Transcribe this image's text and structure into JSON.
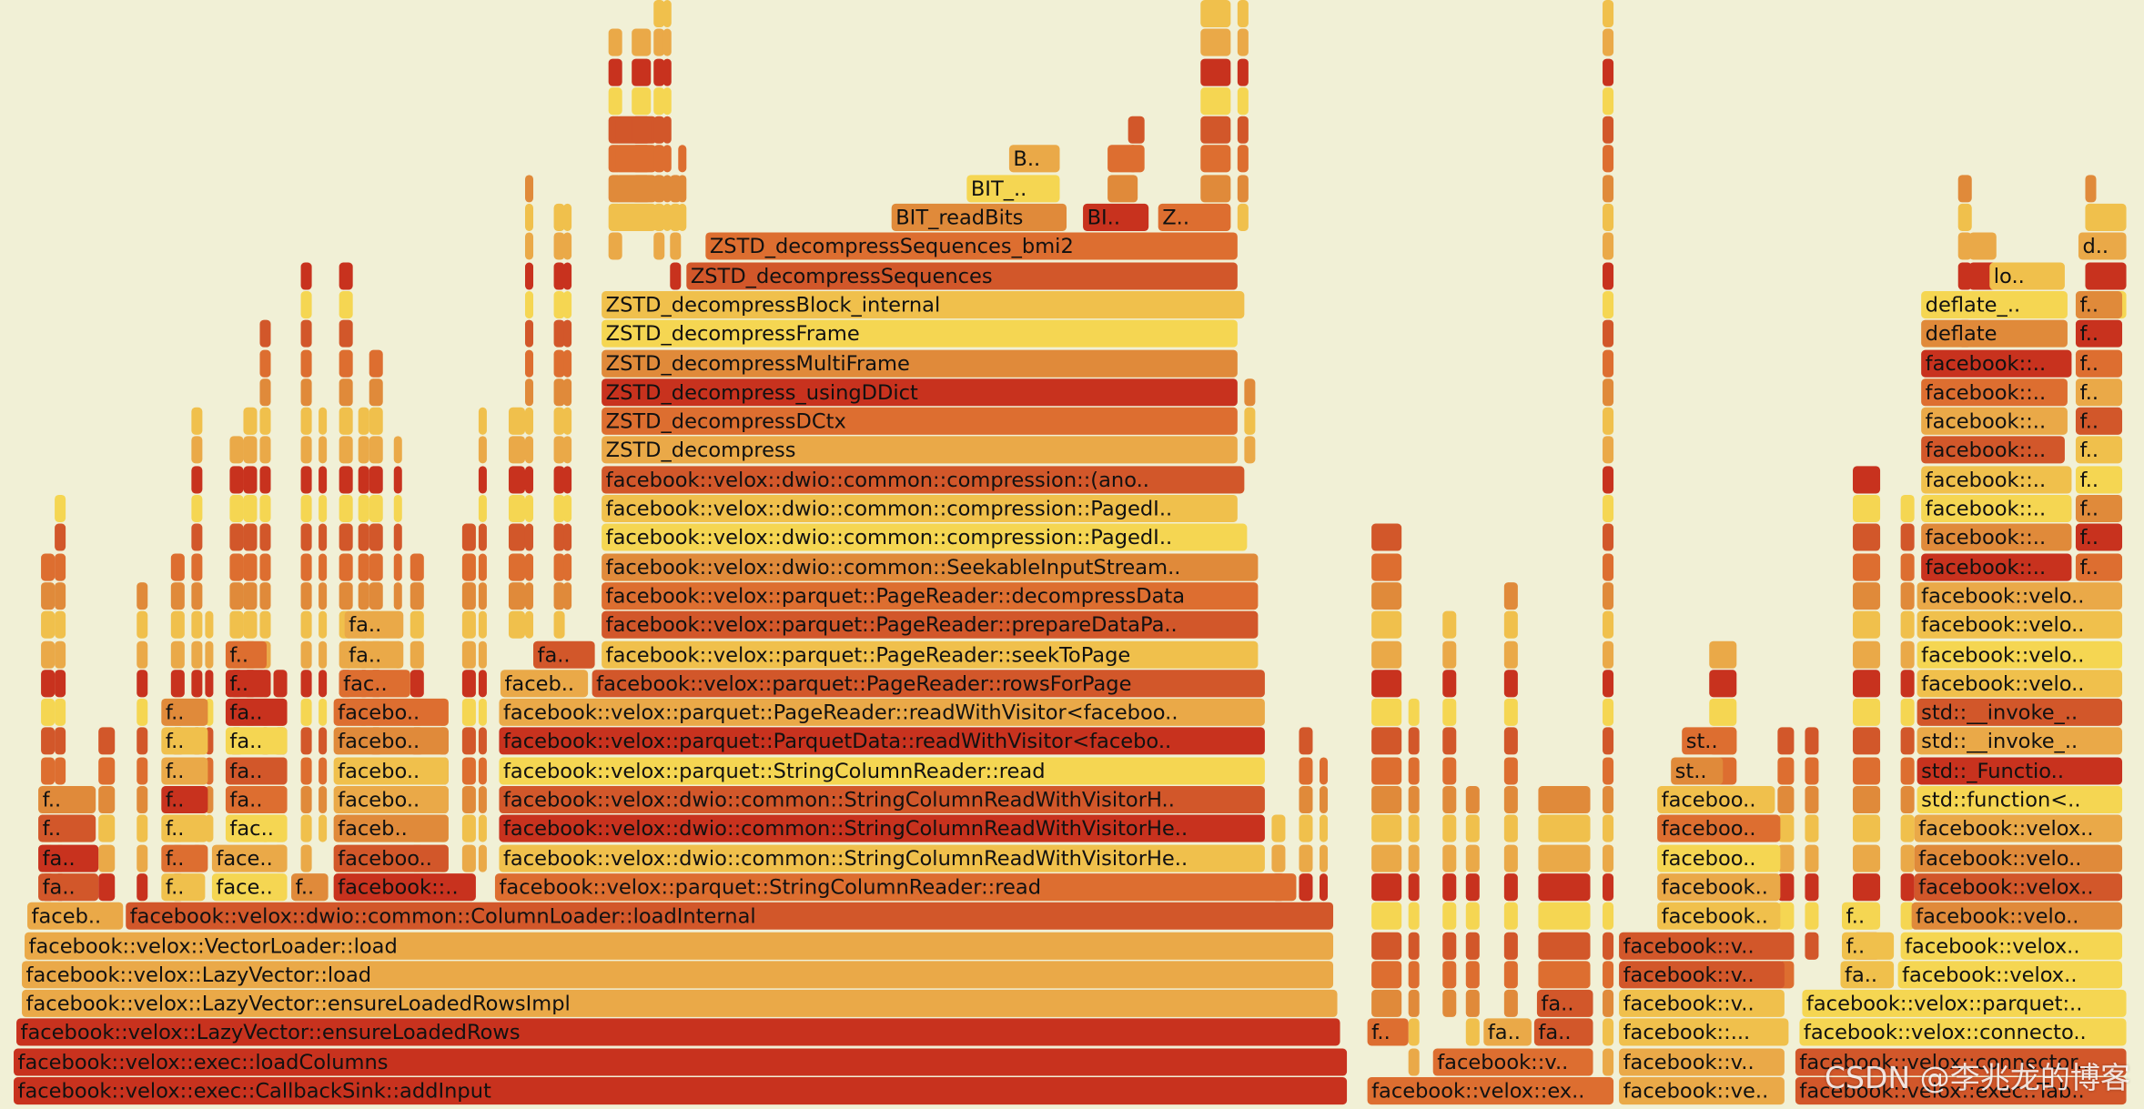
{
  "frames": [
    {
      "label": "facebook::velox::exec::CallbackSink::addInput"
    },
    {
      "label": "facebook::velox::ex.."
    },
    {
      "label": "facebook::ve.."
    },
    {
      "label": "facebook::velox::exec::Tab.."
    },
    {
      "label": "facebook::velox::exec::loadColumns"
    },
    {
      "label": "facebook::v.."
    },
    {
      "label": "facebook::v.."
    },
    {
      "label": "facebook::velox::connector.."
    },
    {
      "label": "facebook::velox::LazyVector::ensureLoadedRows"
    },
    {
      "label": "f.."
    },
    {
      "label": "fa.."
    },
    {
      "label": "fa.."
    },
    {
      "label": "facebook::..."
    },
    {
      "label": "facebook::velox::connecto.."
    },
    {
      "label": "facebook::velox::LazyVector::ensureLoadedRowsImpl"
    },
    {
      "label": "fa.."
    },
    {
      "label": "facebook::v.."
    },
    {
      "label": "facebook::velox::parquet:.."
    },
    {
      "label": "facebook::velox::LazyVector::load"
    },
    {
      "label": "facebook::v.."
    },
    {
      "label": "fa.."
    },
    {
      "label": "facebook::velox.."
    },
    {
      "label": "facebook::velox::VectorLoader::load"
    },
    {
      "label": "facebook::v.."
    },
    {
      "label": "f.."
    },
    {
      "label": "facebook::velox.."
    },
    {
      "label": "faceb.."
    },
    {
      "label": "facebook::velox::dwio::common::ColumnLoader::loadInternal"
    },
    {
      "label": "facebook.."
    },
    {
      "label": "f.."
    },
    {
      "label": "facebook::velo.."
    },
    {
      "label": "fa.."
    },
    {
      "label": "f.."
    },
    {
      "label": "face.."
    },
    {
      "label": "f.."
    },
    {
      "label": "facebook::.."
    },
    {
      "label": "facebook::velox::parquet::StringColumnReader::read"
    },
    {
      "label": "facebook.."
    },
    {
      "label": "facebook::velox.."
    },
    {
      "label": "fa.."
    },
    {
      "label": "f.."
    },
    {
      "label": "face.."
    },
    {
      "label": "faceboo.."
    },
    {
      "label": "facebook::velox::dwio::common::StringColumnReadWithVisitorHe.."
    },
    {
      "label": "faceboo.."
    },
    {
      "label": "facebook::velo.."
    },
    {
      "label": "f.."
    },
    {
      "label": "f.."
    },
    {
      "label": "fac.."
    },
    {
      "label": "faceb.."
    },
    {
      "label": "facebook::velox::dwio::common::StringColumnReadWithVisitorHe.."
    },
    {
      "label": "faceboo.."
    },
    {
      "label": "facebook::velox.."
    },
    {
      "label": "f.."
    },
    {
      "label": "f.."
    },
    {
      "label": "fa.."
    },
    {
      "label": "facebo.."
    },
    {
      "label": "facebook::velox::dwio::common::StringColumnReadWithVisitorH.."
    },
    {
      "label": "faceboo.."
    },
    {
      "label": "std::function<.."
    },
    {
      "label": "f.."
    },
    {
      "label": "fa.."
    },
    {
      "label": "facebo.."
    },
    {
      "label": "facebook::velox::parquet::StringColumnReader::read"
    },
    {
      "label": "st.."
    },
    {
      "label": "std::_Functio.."
    },
    {
      "label": "f.."
    },
    {
      "label": "fa.."
    },
    {
      "label": "facebo.."
    },
    {
      "label": "facebook::velox::parquet::ParquetData::readWithVisitor<facebo.."
    },
    {
      "label": "st.."
    },
    {
      "label": "std::__invoke_.."
    },
    {
      "label": "f.."
    },
    {
      "label": "fa.."
    },
    {
      "label": "facebo.."
    },
    {
      "label": "facebook::velox::parquet::PageReader::readWithVisitor<faceboo.."
    },
    {
      "label": "std::__invoke_.."
    },
    {
      "label": "f.."
    },
    {
      "label": "fac.."
    },
    {
      "label": "faceb.."
    },
    {
      "label": "facebook::velox::parquet::PageReader::rowsForPage"
    },
    {
      "label": "facebook::velo.."
    },
    {
      "label": "f.."
    },
    {
      "label": "fa.."
    },
    {
      "label": "fa.."
    },
    {
      "label": "facebook::velox::parquet::PageReader::seekToPage"
    },
    {
      "label": "facebook::velo.."
    },
    {
      "label": "fa.."
    },
    {
      "label": "facebook::velox::parquet::PageReader::prepareDataPa.."
    },
    {
      "label": "facebook::velo.."
    },
    {
      "label": "facebook::velox::parquet::PageReader::decompressData"
    },
    {
      "label": "facebook::velo.."
    },
    {
      "label": "facebook::velox::dwio::common::SeekableInputStream.."
    },
    {
      "label": "facebook::.."
    },
    {
      "label": "f.."
    },
    {
      "label": "facebook::velox::dwio::common::compression::PagedI.."
    },
    {
      "label": "facebook::.."
    },
    {
      "label": "f.."
    },
    {
      "label": "facebook::velox::dwio::common::compression::PagedI.."
    },
    {
      "label": "facebook::.."
    },
    {
      "label": "f.."
    },
    {
      "label": "facebook::velox::dwio::common::compression::(ano.."
    },
    {
      "label": "facebook::.."
    },
    {
      "label": "f.."
    },
    {
      "label": "ZSTD_decompress"
    },
    {
      "label": "facebook::.."
    },
    {
      "label": "f.."
    },
    {
      "label": "ZSTD_decompressDCtx"
    },
    {
      "label": "facebook::.."
    },
    {
      "label": "f.."
    },
    {
      "label": "ZSTD_decompress_usingDDict"
    },
    {
      "label": "facebook::.."
    },
    {
      "label": "f.."
    },
    {
      "label": "ZSTD_decompressMultiFrame"
    },
    {
      "label": "facebook::.."
    },
    {
      "label": "f.."
    },
    {
      "label": "ZSTD_decompressFrame"
    },
    {
      "label": "deflate"
    },
    {
      "label": "f.."
    },
    {
      "label": "ZSTD_decompressBlock_internal"
    },
    {
      "label": "deflate_.."
    },
    {
      "label": "f.."
    },
    {
      "label": "ZSTD_decompressSequences"
    },
    {
      "label": "lo.."
    },
    {
      "label": "ZSTD_decompressSequences_bmi2"
    },
    {
      "label": "d.."
    },
    {
      "label": "BIT_readBits"
    },
    {
      "label": "BI.."
    },
    {
      "label": "Z.."
    },
    {
      "label": "BIT_.."
    },
    {
      "label": "B.."
    }
  ],
  "watermark": "CSDN @李兆龙的博客"
}
